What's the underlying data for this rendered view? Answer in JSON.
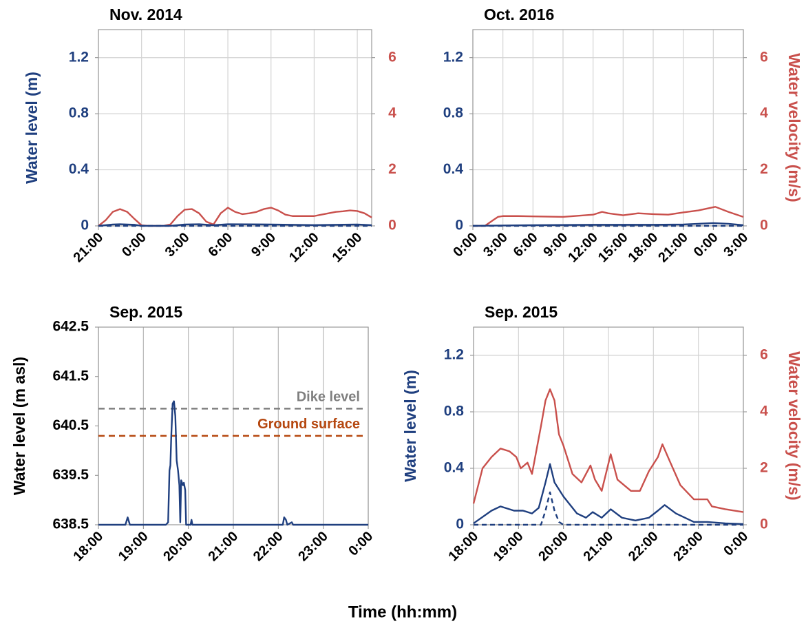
{
  "chart_data": [
    {
      "type": "line",
      "title": "Nov. 2014",
      "ylabel": "Water level (m)",
      "ycolor": "#1f3f7f",
      "y2color": "#c9504c",
      "grid": "both",
      "xlim": [
        0,
        19
      ],
      "xticks": [
        {
          "value": 0,
          "label": "21:00"
        },
        {
          "value": 3,
          "label": "0:00"
        },
        {
          "value": 6,
          "label": "3:00"
        },
        {
          "value": 9,
          "label": "6:00"
        },
        {
          "value": 12,
          "label": "9:00"
        },
        {
          "value": 15,
          "label": "12:00"
        },
        {
          "value": 18,
          "label": "15:00"
        }
      ],
      "ylim": [
        0,
        1.4
      ],
      "yticks": [
        0,
        0.4,
        0.8,
        1.2
      ],
      "y2lim": [
        0,
        7
      ],
      "y2ticks": [
        0,
        2,
        4,
        6
      ],
      "series": [
        {
          "color": "#c9504c",
          "axis": "y2",
          "x": [
            0,
            0.5,
            1,
            1.5,
            2,
            2.5,
            3,
            3.5,
            4,
            4.5,
            5,
            5.5,
            6,
            6.5,
            7,
            7.5,
            8,
            8.5,
            9,
            9.5,
            10,
            10.5,
            11,
            11.5,
            12,
            12.5,
            13,
            13.5,
            14,
            14.5,
            15,
            15.5,
            16,
            16.5,
            17,
            17.5,
            18,
            18.5,
            19
          ],
          "values": [
            0,
            0.2,
            0.5,
            0.6,
            0.5,
            0.25,
            0.02,
            0,
            0,
            0,
            0.05,
            0.35,
            0.58,
            0.6,
            0.45,
            0.15,
            0.05,
            0.45,
            0.65,
            0.5,
            0.42,
            0.45,
            0.5,
            0.6,
            0.65,
            0.55,
            0.4,
            0.35,
            0.35,
            0.35,
            0.35,
            0.4,
            0.45,
            0.5,
            0.52,
            0.55,
            0.53,
            0.45,
            0.3
          ]
        },
        {
          "color": "#1f3f7f",
          "x": [
            0,
            1,
            1.5,
            2.5,
            3,
            5,
            6,
            7,
            8,
            9,
            12,
            15,
            18,
            19
          ],
          "values": [
            0,
            0.01,
            0.012,
            0.008,
            0,
            0,
            0.01,
            0.012,
            0.005,
            0.012,
            0.01,
            0.006,
            0.01,
            0.005
          ]
        },
        {
          "color": "#1f3f7f",
          "dash": true,
          "x": [
            0,
            19
          ],
          "values": [
            0,
            0
          ]
        }
      ]
    },
    {
      "type": "line",
      "title": "Oct. 2016",
      "y2label": "Water velocity (m/s)",
      "ycolor": "#1f3f7f",
      "y2color": "#c9504c",
      "grid": "both",
      "xlim": [
        0,
        27
      ],
      "xticks": [
        {
          "value": 0,
          "label": "0:00"
        },
        {
          "value": 3,
          "label": "3:00"
        },
        {
          "value": 6,
          "label": "6:00"
        },
        {
          "value": 9,
          "label": "9:00"
        },
        {
          "value": 12,
          "label": "12:00"
        },
        {
          "value": 15,
          "label": "15:00"
        },
        {
          "value": 18,
          "label": "18:00"
        },
        {
          "value": 21,
          "label": "21:00"
        },
        {
          "value": 24,
          "label": "0:00"
        },
        {
          "value": 27,
          "label": "3:00"
        }
      ],
      "ylim": [
        0,
        1.4
      ],
      "yticks": [
        0,
        0.4,
        0.8,
        1.2
      ],
      "y2lim": [
        0,
        7
      ],
      "y2ticks": [
        0,
        2,
        4,
        6
      ],
      "series": [
        {
          "color": "#c9504c",
          "axis": "y2",
          "x": [
            0,
            1.2,
            2,
            2.5,
            3,
            4.5,
            6,
            7.5,
            9,
            10.5,
            12,
            12.9,
            13.5,
            15,
            16.5,
            18,
            19.5,
            21,
            22.5,
            24.2,
            25.5,
            27
          ],
          "values": [
            0,
            0,
            0.2,
            0.32,
            0.35,
            0.35,
            0.34,
            0.33,
            0.32,
            0.36,
            0.4,
            0.5,
            0.45,
            0.38,
            0.45,
            0.42,
            0.4,
            0.48,
            0.55,
            0.68,
            0.5,
            0.32
          ]
        },
        {
          "color": "#1f3f7f",
          "x": [
            0,
            6,
            12,
            18,
            21,
            24,
            25.5,
            27
          ],
          "values": [
            0,
            0.005,
            0.008,
            0.008,
            0.01,
            0.02,
            0.015,
            0.005
          ]
        },
        {
          "color": "#1f3f7f",
          "dash": true,
          "x": [
            0,
            27
          ],
          "values": [
            0,
            0
          ]
        }
      ]
    },
    {
      "type": "line",
      "title": "Sep. 2015",
      "ylabel": "Water level (m asl)",
      "ycolor": "#000000",
      "grid": "x",
      "xlim": [
        18,
        24
      ],
      "xticks": [
        {
          "value": 18,
          "label": "18:00"
        },
        {
          "value": 19,
          "label": "19:00"
        },
        {
          "value": 20,
          "label": "20:00"
        },
        {
          "value": 21,
          "label": "21:00"
        },
        {
          "value": 22,
          "label": "22:00"
        },
        {
          "value": 23,
          "label": "23:00"
        },
        {
          "value": 24,
          "label": "0:00"
        }
      ],
      "ylim": [
        638.5,
        642.5
      ],
      "yticks": [
        638.5,
        639.5,
        640.5,
        641.5,
        642.5
      ],
      "hlines": [
        {
          "value": 640.85,
          "label": "Dike level",
          "color": "#7f7f7f"
        },
        {
          "value": 640.3,
          "label": "Ground surface",
          "color": "#b5470f"
        }
      ],
      "series": [
        {
          "color": "#1f3f7f",
          "x": [
            18,
            18.6,
            18.65,
            18.7,
            19.5,
            19.55,
            19.58,
            19.6,
            19.62,
            19.65,
            19.68,
            19.71,
            19.74,
            19.77,
            19.8,
            19.82,
            19.84,
            19.88,
            19.9,
            19.93,
            19.95,
            20.05,
            20.07,
            20.09,
            22.1,
            22.13,
            22.17,
            22.2,
            22.3,
            22.33,
            24
          ],
          "values": [
            638.5,
            638.5,
            638.65,
            638.5,
            638.5,
            638.55,
            639.6,
            639.7,
            640.3,
            640.95,
            641.0,
            640.7,
            639.8,
            639.6,
            639.3,
            638.55,
            639.4,
            639.3,
            639.35,
            639.2,
            638.5,
            638.5,
            638.6,
            638.5,
            638.5,
            638.65,
            638.6,
            638.5,
            638.55,
            638.5,
            638.5
          ]
        }
      ]
    },
    {
      "type": "line",
      "title": "Sep. 2015",
      "ylabel": "Water level (m)",
      "y2label": "Water velocity (m/s)",
      "ycolor": "#1f3f7f",
      "y2color": "#c9504c",
      "grid": "both",
      "xlim": [
        18,
        24
      ],
      "xticks": [
        {
          "value": 18,
          "label": "18:00"
        },
        {
          "value": 19,
          "label": "19:00"
        },
        {
          "value": 20,
          "label": "20:00"
        },
        {
          "value": 21,
          "label": "21:00"
        },
        {
          "value": 22,
          "label": "22:00"
        },
        {
          "value": 23,
          "label": "23:00"
        },
        {
          "value": 24,
          "label": "0:00"
        }
      ],
      "ylim": [
        0,
        1.4
      ],
      "yticks": [
        0,
        0.4,
        0.8,
        1.2
      ],
      "y2lim": [
        0,
        7
      ],
      "y2ticks": [
        0,
        2,
        4,
        6
      ],
      "series": [
        {
          "color": "#c9504c",
          "axis": "y2",
          "x": [
            18,
            18.2,
            18.4,
            18.6,
            18.8,
            18.95,
            19.05,
            19.2,
            19.3,
            19.5,
            19.6,
            19.7,
            19.8,
            19.9,
            20,
            20.2,
            20.4,
            20.6,
            20.7,
            20.85,
            21.05,
            21.2,
            21.5,
            21.7,
            21.9,
            22.1,
            22.2,
            22.35,
            22.6,
            22.9,
            23.2,
            23.3,
            23.6,
            24
          ],
          "values": [
            0.75,
            2.0,
            2.4,
            2.7,
            2.6,
            2.4,
            2.0,
            2.2,
            1.8,
            3.5,
            4.4,
            4.8,
            4.4,
            3.2,
            2.8,
            1.8,
            1.5,
            2.1,
            1.6,
            1.2,
            2.5,
            1.6,
            1.2,
            1.2,
            1.9,
            2.4,
            2.85,
            2.3,
            1.4,
            0.9,
            0.9,
            0.65,
            0.55,
            0.45
          ]
        },
        {
          "color": "#1f3f7f",
          "x": [
            18,
            18.4,
            18.6,
            18.9,
            19.1,
            19.3,
            19.45,
            19.6,
            19.7,
            19.8,
            20,
            20.3,
            20.5,
            20.65,
            20.85,
            21.05,
            21.3,
            21.6,
            21.9,
            22.1,
            22.25,
            22.5,
            22.9,
            23.2,
            23.6,
            24
          ],
          "values": [
            0.01,
            0.1,
            0.13,
            0.1,
            0.1,
            0.08,
            0.12,
            0.3,
            0.43,
            0.3,
            0.2,
            0.08,
            0.05,
            0.09,
            0.05,
            0.11,
            0.05,
            0.03,
            0.05,
            0.1,
            0.14,
            0.08,
            0.02,
            0.02,
            0.01,
            0.005
          ]
        },
        {
          "color": "#1f3f7f",
          "dash": true,
          "x": [
            18,
            19.5,
            19.6,
            19.7,
            19.8,
            19.9,
            20,
            24
          ],
          "values": [
            0,
            0,
            0.1,
            0.23,
            0.1,
            0.02,
            0,
            0
          ]
        }
      ]
    }
  ],
  "common_xlabel": "Time (hh:mm)"
}
